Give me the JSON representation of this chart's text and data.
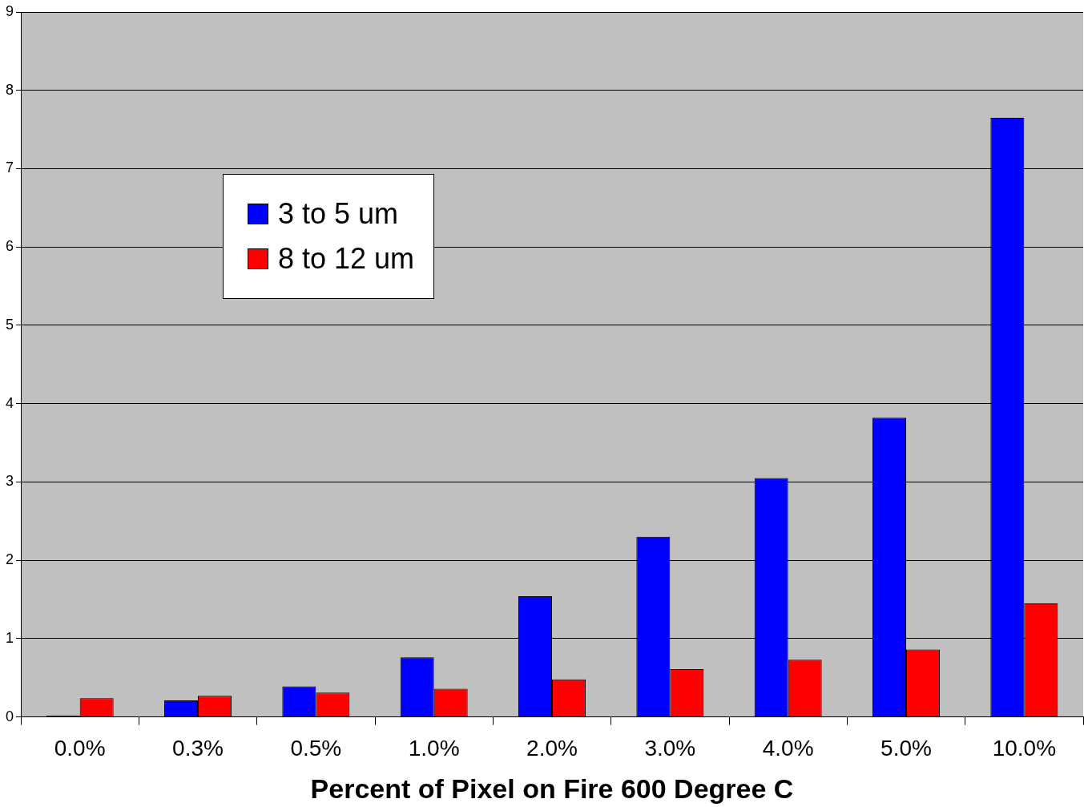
{
  "chart_data": {
    "type": "bar",
    "xlabel": "Percent of Pixel on Fire 600 Degree C",
    "categories": [
      "0.0%",
      "0.3%",
      "0.5%",
      "1.0%",
      "2.0%",
      "3.0%",
      "4.0%",
      "5.0%",
      "10.0%"
    ],
    "series": [
      {
        "name": "3 to 5 um",
        "color": "#0000ff",
        "values": [
          0.02,
          0.21,
          0.39,
          0.76,
          1.54,
          2.3,
          3.05,
          3.82,
          7.65
        ]
      },
      {
        "name": "8 to 12 um",
        "color": "#ff0000",
        "values": [
          0.24,
          0.27,
          0.31,
          0.36,
          0.48,
          0.61,
          0.73,
          0.86,
          1.45
        ]
      }
    ],
    "ylim": [
      0,
      9
    ],
    "yticks": [
      0,
      1,
      2,
      3,
      4,
      5,
      6,
      7,
      8,
      9
    ],
    "grid": "y",
    "legend": "top left"
  }
}
